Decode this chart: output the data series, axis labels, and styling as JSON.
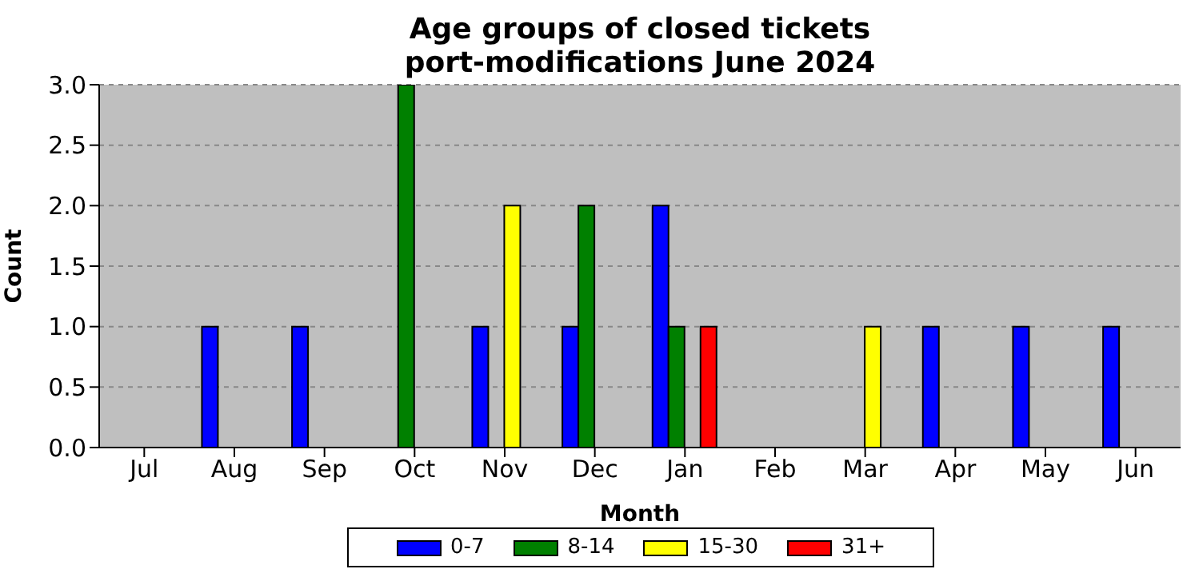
{
  "chart_data": {
    "type": "bar",
    "title": "Age groups of closed tickets\nport-modifications June 2024",
    "xlabel": "Month",
    "ylabel": "Count",
    "categories": [
      "Jul",
      "Aug",
      "Sep",
      "Oct",
      "Nov",
      "Dec",
      "Jan",
      "Feb",
      "Mar",
      "Apr",
      "May",
      "Jun"
    ],
    "series": [
      {
        "name": "0-7",
        "color": "#0000ff",
        "values": [
          0,
          1,
          1,
          0,
          1,
          1,
          2,
          0,
          0,
          1,
          1,
          1
        ]
      },
      {
        "name": "8-14",
        "color": "#008000",
        "values": [
          0,
          0,
          0,
          3,
          0,
          2,
          1,
          0,
          0,
          0,
          0,
          0
        ]
      },
      {
        "name": "15-30",
        "color": "#ffff00",
        "values": [
          0,
          0,
          0,
          0,
          2,
          0,
          0,
          0,
          1,
          0,
          0,
          0
        ]
      },
      {
        "name": "31+",
        "color": "#ff0000",
        "values": [
          0,
          0,
          0,
          0,
          0,
          0,
          1,
          0,
          0,
          0,
          0,
          0
        ]
      }
    ],
    "ylim": [
      0,
      3
    ],
    "yticks": [
      {
        "value": 0,
        "label": "0.0"
      },
      0.5,
      {
        "value": 1,
        "label": "1.0"
      },
      1.5,
      {
        "value": 2,
        "label": "2.0"
      },
      2.5,
      {
        "value": 3,
        "label": "3.0"
      }
    ],
    "grid": "y",
    "legend": "bottom"
  }
}
